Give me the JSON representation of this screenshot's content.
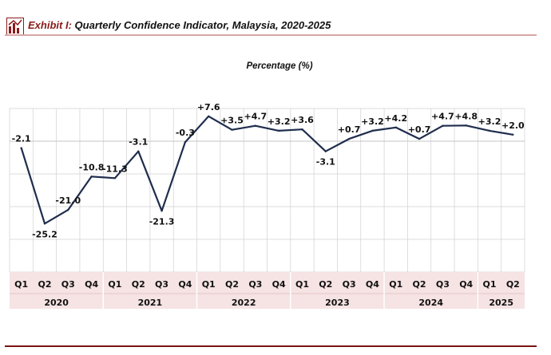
{
  "header": {
    "exhibit": "Exhibit",
    "number": "I:",
    "title": "Quarterly Confidence Indicator, Malaysia, 2020-2025"
  },
  "colors": {
    "line": "#1f2d4d",
    "axis_band": "#f6e3e3",
    "grid": "#d0d0d0",
    "accent": "#8b1a1a"
  },
  "chart_data": {
    "type": "line",
    "subtitle": "Percentage (%)",
    "categories": [
      "Q1",
      "Q2",
      "Q3",
      "Q4",
      "Q1",
      "Q2",
      "Q3",
      "Q4",
      "Q1",
      "Q2",
      "Q3",
      "Q4",
      "Q1",
      "Q2",
      "Q3",
      "Q4",
      "Q1",
      "Q2",
      "Q3",
      "Q4",
      "Q1",
      "Q2"
    ],
    "years": [
      {
        "label": "2020",
        "quarters": 4
      },
      {
        "label": "2021",
        "quarters": 4
      },
      {
        "label": "2022",
        "quarters": 4
      },
      {
        "label": "2023",
        "quarters": 4
      },
      {
        "label": "2024",
        "quarters": 4
      },
      {
        "label": "2025",
        "quarters": 2
      }
    ],
    "series": [
      {
        "values": [
          -2.1,
          -25.2,
          -21.0,
          -10.8,
          -11.3,
          -3.1,
          -21.3,
          -0.3,
          7.6,
          3.5,
          4.7,
          3.2,
          3.6,
          -3.1,
          0.7,
          3.2,
          4.2,
          0.7,
          4.7,
          4.8,
          3.2,
          2.0
        ],
        "labels": [
          "-2.1",
          "-25.2",
          "-21.0",
          "-10.8",
          "-11.3",
          "-3.1",
          "-21.3",
          "-0.3",
          "+7.6",
          "+3.5",
          "+4.7",
          "+3.2",
          "+3.6",
          "-3.1",
          "+0.7",
          "+3.2",
          "+4.2",
          "+0.7",
          "+4.7",
          "+4.8",
          "+3.2",
          "+2.0"
        ]
      }
    ],
    "ylim": [
      -40,
      10
    ],
    "grid": true
  }
}
